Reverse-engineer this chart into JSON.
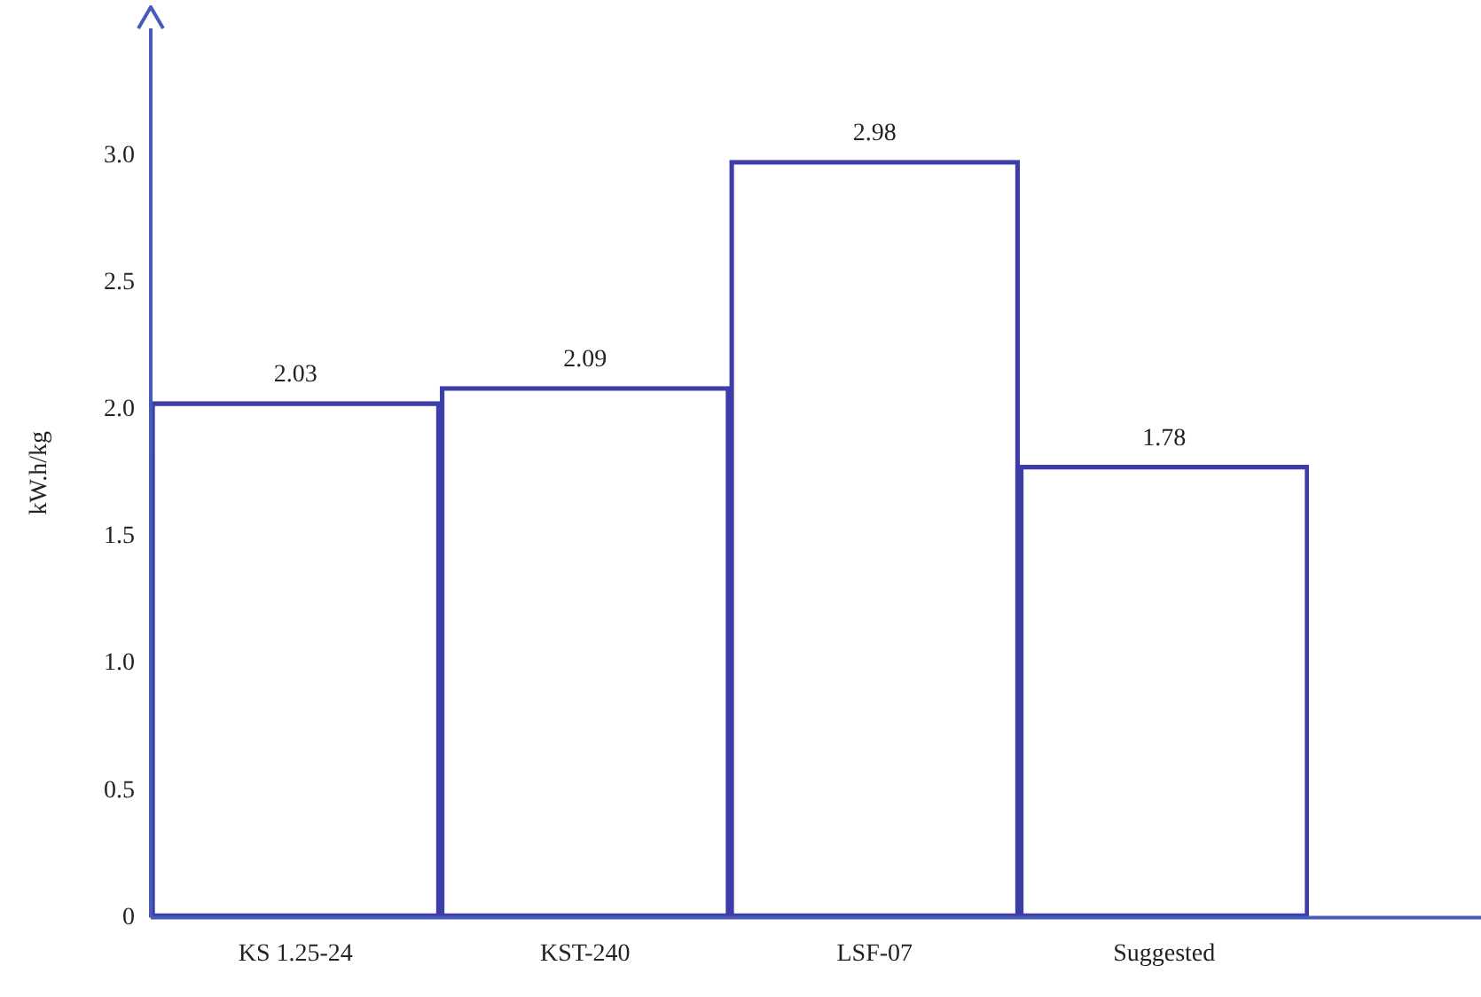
{
  "chart_data": {
    "type": "bar",
    "ylabel": "kW.h/kg",
    "categories": [
      "KS 1.25-24",
      "KST-240",
      "LSF-07",
      "Suggested"
    ],
    "values": [
      2.03,
      2.09,
      2.98,
      1.78
    ],
    "data_labels": true,
    "color": "#3d3da8",
    "ylim": [
      0,
      3.5
    ],
    "yticks": [
      0,
      {
        "value": 0.5,
        "label": "0.5"
      },
      {
        "value": 1,
        "label": "1.0"
      },
      {
        "value": 1.5,
        "label": "1.5"
      },
      {
        "value": 2,
        "label": "2.0"
      },
      {
        "value": 2.5,
        "label": "2.5"
      },
      {
        "value": 3,
        "label": "3.0"
      }
    ],
    "grid": false,
    "legend": false
  }
}
